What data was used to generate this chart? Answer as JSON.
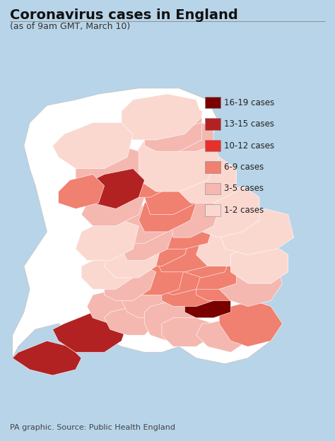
{
  "title": "Coronavirus cases in England",
  "subtitle": "(as of 9am GMT, March 10)",
  "source": "PA graphic. Source: Public Health England",
  "background_color": "#b8d4e8",
  "legend_entries": [
    {
      "label": "16-19 cases",
      "color": "#7a0000"
    },
    {
      "label": "13-15 cases",
      "color": "#b22222"
    },
    {
      "label": "10-12 cases",
      "color": "#e8302a"
    },
    {
      "label": "6-9 cases",
      "color": "#f08070"
    },
    {
      "label": "3-5 cases",
      "color": "#f4b8b0"
    },
    {
      "label": "1-2 cases",
      "color": "#fad8d0"
    }
  ],
  "title_fontsize": 14,
  "subtitle_fontsize": 9,
  "source_fontsize": 8,
  "legend_fontsize": 8.5,
  "title_color": "#111111",
  "subtitle_color": "#333333",
  "source_color": "#444444",
  "county_colors": {
    "Northumberland": "#fad8d0",
    "Tyne and Wear": "#f4b8b0",
    "Durham": "#f4b8b0",
    "Cleveland": "#f4b8b0",
    "Cumbria": "#fad8d0",
    "North Yorkshire": "#fad8d0",
    "Lancashire": "#f4b8b0",
    "Merseyside": "#f08070",
    "Greater Manchester": "#b22222",
    "West Yorkshire": "#f08070",
    "South Yorkshire": "#f08070",
    "Humberside": "#fad8d0",
    "Cheshire": "#f4b8b0",
    "Derbyshire": "#f08070",
    "Nottinghamshire": "#f4b8b0",
    "Lincolnshire": "#fad8d0",
    "Staffordshire": "#f4b8b0",
    "West Midlands": "#f4b8b0",
    "Warwickshire": "#f08070",
    "Leicestershire": "#f08070",
    "Northamptonshire": "#f08070",
    "Shropshire": "#fad8d0",
    "Hereford and Worcester": "#fad8d0",
    "Worcestershire": "#fad8d0",
    "Herefordshire": "#fad8d0",
    "Gloucestershire": "#f4b8b0",
    "Oxfordshire": "#f08070",
    "Buckinghamshire": "#f08070",
    "Bedfordshire": "#f08070",
    "Hertfordshire": "#f08070",
    "Essex": "#f4b8b0",
    "Suffolk": "#fad8d0",
    "Norfolk": "#fad8d0",
    "Cambridgeshire": "#fad8d0",
    "London": "#f08070",
    "Surrey": "#7a0000",
    "Kent": "#f08070",
    "East Sussex": "#f4b8b0",
    "West Sussex": "#f4b8b0",
    "Hampshire": "#f4b8b0",
    "Isle of Wight": "#fad8d0",
    "Berkshire": "#f08070",
    "Wiltshire": "#f4b8b0",
    "Dorset": "#f4b8b0",
    "Somerset": "#f4b8b0",
    "Devon": "#b22222",
    "Cornwall": "#b22222",
    "Bristol": "#e8302a",
    "South Gloucestershire": "#f4b8b0",
    "Bath and North East Somerset": "#f4b8b0",
    "North Somerset": "#f4b8b0",
    "Avon": "#f4b8b0"
  }
}
